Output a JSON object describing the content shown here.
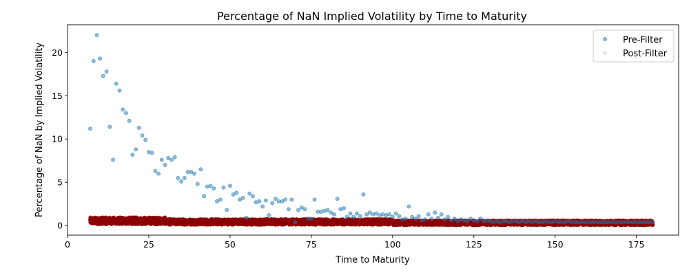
{
  "chart_data": {
    "type": "scatter",
    "title": "Percentage of NaN Implied Volatility by Time to Maturity",
    "xlabel": "Time to Maturity",
    "ylabel": "Percentage of NaN by Implied Volatility",
    "xlim": [
      0,
      188
    ],
    "ylim": [
      -1.1,
      23.2
    ],
    "xticks": [
      0,
      25,
      50,
      75,
      100,
      125,
      150,
      175
    ],
    "yticks": [
      0,
      5,
      10,
      15,
      20
    ],
    "grid": false,
    "legend_position": "top-right",
    "series": [
      {
        "name": "Pre-Filter",
        "color": "#1f77b4",
        "alpha": 0.5,
        "points": [
          [
            7,
            11.2
          ],
          [
            8,
            19.0
          ],
          [
            9,
            22.0
          ],
          [
            10,
            19.3
          ],
          [
            11,
            17.3
          ],
          [
            12,
            17.8
          ],
          [
            13,
            11.4
          ],
          [
            14,
            7.6
          ],
          [
            15,
            16.4
          ],
          [
            16,
            15.6
          ],
          [
            17,
            13.4
          ],
          [
            18,
            13.0
          ],
          [
            19,
            12.1
          ],
          [
            20,
            8.2
          ],
          [
            21,
            8.8
          ],
          [
            22,
            11.3
          ],
          [
            23,
            10.4
          ],
          [
            24,
            9.9
          ],
          [
            25,
            8.5
          ],
          [
            26,
            8.4
          ],
          [
            27,
            6.3
          ],
          [
            28,
            6.0
          ],
          [
            29,
            7.6
          ],
          [
            30,
            7.0
          ],
          [
            31,
            7.8
          ],
          [
            32,
            7.6
          ],
          [
            33,
            7.9
          ],
          [
            34,
            5.5
          ],
          [
            35,
            5.1
          ],
          [
            36,
            5.5
          ],
          [
            37,
            6.2
          ],
          [
            38,
            6.2
          ],
          [
            39,
            6.0
          ],
          [
            40,
            4.8
          ],
          [
            41,
            6.5
          ],
          [
            42,
            3.4
          ],
          [
            43,
            4.5
          ],
          [
            44,
            4.6
          ],
          [
            45,
            4.3
          ],
          [
            46,
            2.8
          ],
          [
            47,
            3.0
          ],
          [
            48,
            4.4
          ],
          [
            49,
            1.8
          ],
          [
            50,
            4.6
          ],
          [
            51,
            3.6
          ],
          [
            52,
            3.8
          ],
          [
            53,
            3.0
          ],
          [
            54,
            3.2
          ],
          [
            55,
            0.9
          ],
          [
            56,
            3.7
          ],
          [
            57,
            3.4
          ],
          [
            58,
            2.7
          ],
          [
            59,
            2.8
          ],
          [
            60,
            2.2
          ],
          [
            61,
            2.9
          ],
          [
            62,
            1.2
          ],
          [
            63,
            2.6
          ],
          [
            64,
            3.1
          ],
          [
            65,
            2.8
          ],
          [
            66,
            2.8
          ],
          [
            67,
            3.0
          ],
          [
            68,
            1.9
          ],
          [
            69,
            3.0
          ],
          [
            70,
            0.4
          ],
          [
            71,
            1.8
          ],
          [
            72,
            2.1
          ],
          [
            73,
            1.9
          ],
          [
            74,
            0.8
          ],
          [
            75,
            0.8
          ],
          [
            76,
            3.0
          ],
          [
            77,
            1.6
          ],
          [
            78,
            1.6
          ],
          [
            79,
            1.7
          ],
          [
            80,
            1.8
          ],
          [
            81,
            1.5
          ],
          [
            82,
            1.3
          ],
          [
            83,
            3.1
          ],
          [
            84,
            1.9
          ],
          [
            85,
            2.0
          ],
          [
            86,
            1.0
          ],
          [
            87,
            1.4
          ],
          [
            88,
            1.0
          ],
          [
            89,
            1.4
          ],
          [
            90,
            1.1
          ],
          [
            91,
            3.6
          ],
          [
            92,
            1.3
          ],
          [
            93,
            1.5
          ],
          [
            94,
            1.3
          ],
          [
            95,
            1.4
          ],
          [
            96,
            1.2
          ],
          [
            97,
            1.3
          ],
          [
            98,
            1.2
          ],
          [
            99,
            1.3
          ],
          [
            100,
            1.0
          ],
          [
            101,
            1.4
          ],
          [
            102,
            1.1
          ],
          [
            103,
            0.7
          ],
          [
            104,
            0.8
          ],
          [
            105,
            2.2
          ],
          [
            106,
            1.0
          ],
          [
            107,
            0.8
          ],
          [
            108,
            1.1
          ],
          [
            109,
            0.6
          ],
          [
            110,
            0.7
          ],
          [
            111,
            1.3
          ],
          [
            112,
            0.8
          ],
          [
            113,
            1.5
          ],
          [
            114,
            0.9
          ],
          [
            115,
            1.3
          ],
          [
            116,
            0.7
          ],
          [
            117,
            1.0
          ],
          [
            118,
            0.6
          ],
          [
            119,
            0.8
          ],
          [
            120,
            0.5
          ],
          [
            121,
            0.7
          ],
          [
            122,
            0.6
          ],
          [
            123,
            0.5
          ],
          [
            124,
            0.8
          ],
          [
            125,
            0.6
          ],
          [
            126,
            0.5
          ],
          [
            127,
            0.8
          ],
          [
            128,
            0.5
          ],
          [
            129,
            0.6
          ],
          [
            130,
            0.5
          ],
          [
            131,
            0.4
          ],
          [
            132,
            0.5
          ],
          [
            133,
            0.4
          ],
          [
            134,
            0.5
          ],
          [
            135,
            0.5
          ],
          [
            136,
            0.4
          ],
          [
            137,
            0.5
          ],
          [
            138,
            0.5
          ],
          [
            139,
            0.4
          ],
          [
            140,
            0.5
          ],
          [
            141,
            0.4
          ],
          [
            142,
            0.5
          ],
          [
            143,
            0.4
          ],
          [
            144,
            0.5
          ],
          [
            145,
            0.4
          ],
          [
            146,
            0.4
          ],
          [
            147,
            0.5
          ],
          [
            148,
            0.4
          ],
          [
            149,
            0.4
          ],
          [
            150,
            0.5
          ],
          [
            151,
            0.4
          ],
          [
            152,
            0.4
          ],
          [
            153,
            0.4
          ],
          [
            154,
            0.5
          ],
          [
            155,
            0.4
          ],
          [
            156,
            0.4
          ],
          [
            157,
            0.4
          ],
          [
            158,
            0.4
          ],
          [
            159,
            0.4
          ],
          [
            160,
            0.4
          ],
          [
            161,
            0.4
          ],
          [
            162,
            0.4
          ],
          [
            163,
            0.4
          ],
          [
            164,
            0.4
          ],
          [
            165,
            0.4
          ],
          [
            166,
            0.4
          ],
          [
            167,
            0.4
          ],
          [
            168,
            0.4
          ],
          [
            169,
            0.4
          ],
          [
            170,
            0.4
          ],
          [
            171,
            0.4
          ],
          [
            172,
            0.4
          ],
          [
            173,
            0.4
          ],
          [
            174,
            0.4
          ],
          [
            175,
            0.4
          ],
          [
            176,
            0.4
          ],
          [
            177,
            0.4
          ],
          [
            178,
            0.4
          ],
          [
            179,
            0.4
          ],
          [
            180,
            0.4
          ]
        ]
      },
      {
        "name": "Post-Filter",
        "color": "#8b0000",
        "alpha": 0.1,
        "x_range": [
          7,
          180
        ],
        "x_step": 0.25,
        "y_band_low": [
          0.15,
          0.1,
          0.05
        ],
        "y_band_high": [
          0.95,
          0.75,
          0.6
        ],
        "band_breaks_x": [
          30,
          100
        ]
      }
    ]
  }
}
